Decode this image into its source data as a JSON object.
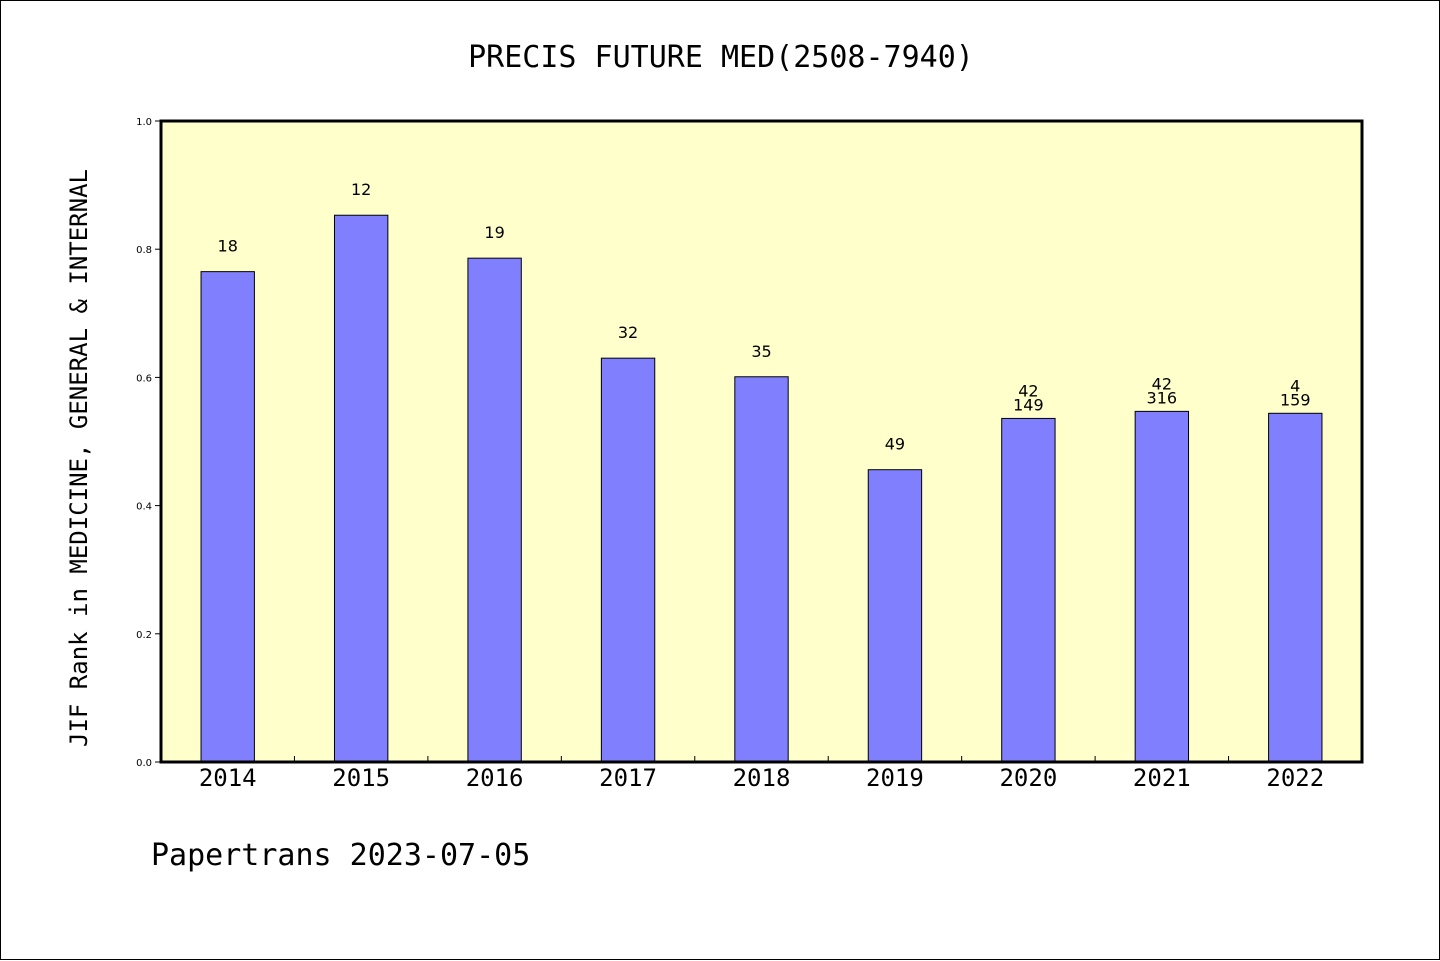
{
  "chart_data": {
    "type": "bar",
    "title": "PRECIS FUTURE MED(2508-7940)",
    "xlabel": "",
    "ylabel": "JIF Rank in MEDICINE, GENERAL & INTERNAL",
    "ylim": [
      0,
      1.0
    ],
    "yticks": [
      "0.0",
      "0.2",
      "0.4",
      "0.6",
      "0.8",
      "1.0"
    ],
    "categories": [
      "2014",
      "2015",
      "2016",
      "2017",
      "2018",
      "2019",
      "2020",
      "2021",
      "2022"
    ],
    "values": [
      0.765,
      0.853,
      0.786,
      0.63,
      0.601,
      0.456,
      0.536,
      0.547,
      0.544
    ],
    "bar_labels": [
      [
        "18"
      ],
      [
        "12"
      ],
      [
        "19"
      ],
      [
        "32"
      ],
      [
        "35"
      ],
      [
        "49"
      ],
      [
        "42",
        "149"
      ],
      [
        "42",
        "316"
      ],
      [
        "4",
        "159"
      ]
    ],
    "grid": false,
    "colors": {
      "bar": "#8080ff",
      "plot_background": "#ffffcc"
    }
  },
  "footer": "Papertrans 2023-07-05"
}
